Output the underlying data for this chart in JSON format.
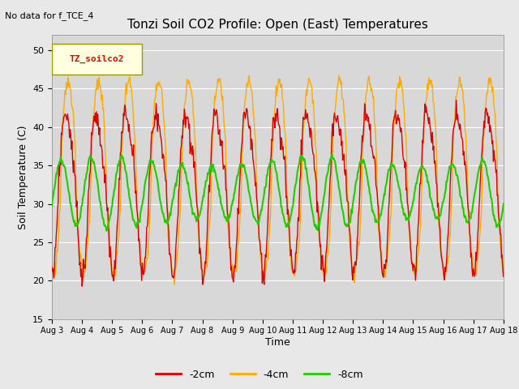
{
  "title": "Tonzi Soil CO2 Profile: Open (East) Temperatures",
  "subtitle": "No data for f_TCE_4",
  "ylabel": "Soil Temperature (C)",
  "xlabel": "Time",
  "ylim": [
    15,
    52
  ],
  "yticks": [
    15,
    20,
    25,
    30,
    35,
    40,
    45,
    50
  ],
  "legend_box_label": "TZ_soilco2",
  "colors": {
    "-2cm": "#dd0000",
    "-4cm": "#ffaa00",
    "-8cm": "#22cc00"
  },
  "linewidths": {
    "-2cm": 1.0,
    "-4cm": 1.0,
    "-8cm": 1.5
  },
  "num_days": 15,
  "start_day": 3,
  "background_color": "#e8e8e8",
  "plot_bg_color": "#d8d8d8",
  "grid_color": "#ffffff",
  "mean_2cm": 32.5,
  "amp_2cm": 10.0,
  "mean_4cm": 33.5,
  "amp_4cm": 12.5,
  "mean_8cm": 31.5,
  "amp_8cm": 4.0,
  "phase_2cm": -1.5707963,
  "phase_4cm": -1.8707963,
  "phase_8cm": -0.3707963
}
